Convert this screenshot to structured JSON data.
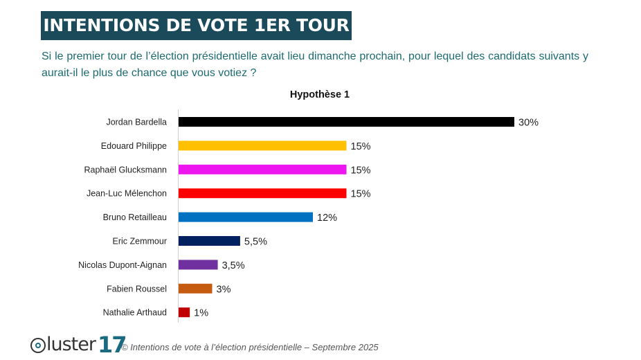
{
  "header": {
    "title": "INTENTIONS DE VOTE 1ER TOUR",
    "title_bg": "#1b4b5a",
    "question": "Si le premier tour de l’élection présidentielle avait lieu dimanche prochain, pour lequel des candidats suivants y aurait-il le plus de chance que vous votiez ?"
  },
  "chart_data": {
    "type": "bar",
    "orientation": "horizontal",
    "title": "Hypothèse 1",
    "xlabel": "",
    "ylabel": "",
    "xlim": [
      0,
      30
    ],
    "grid": false,
    "categories": [
      "Jordan Bardella",
      "Edouard Philippe",
      "Raphaël Glucksmann",
      "Jean-Luc Mélenchon",
      "Bruno Retailleau",
      "Eric Zemmour",
      "Nicolas Dupont-Aignan",
      "Fabien Roussel",
      "Nathalie Arthaud"
    ],
    "values": [
      30,
      15,
      15,
      15,
      12,
      5.5,
      3.5,
      3,
      1
    ],
    "value_labels": [
      "30%",
      "15%",
      "15%",
      "15%",
      "12%",
      "5,5%",
      "3,5%",
      "3%",
      "1%"
    ],
    "colors": [
      "#000000",
      "#ffc000",
      "#ee16ee",
      "#ff0000",
      "#0070c0",
      "#002060",
      "#7030a0",
      "#c55a11",
      "#c00000"
    ]
  },
  "footer": {
    "logo_word": "luster",
    "logo_number": "17",
    "source": "© Intentions de vote à l’élection présidentielle – Septembre 2025"
  }
}
